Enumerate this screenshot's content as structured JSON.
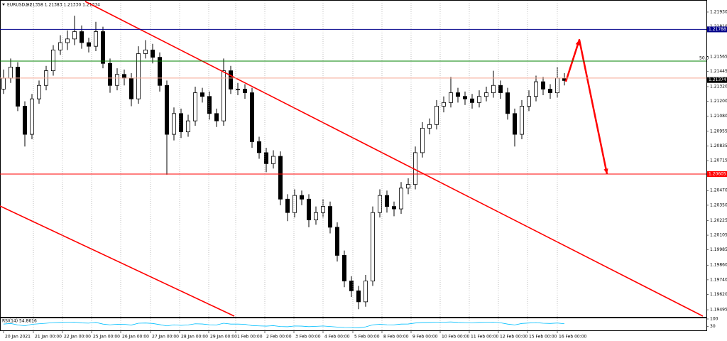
{
  "chart_data": {
    "type": "candlestick",
    "title": "EURUSD,H1",
    "quote": "1.21358 1.21383 1.21330 1.21374",
    "up_color": "#ffffff",
    "down_color": "#000000",
    "wick_color": "#000000",
    "grid": true,
    "xlim": [
      -0.5,
      99
    ],
    "xticks": [
      {
        "value": 0,
        "label": "20 Jan 2021"
      },
      {
        "value": 4.2,
        "label": "21 Jan 00:00"
      },
      {
        "value": 8.3,
        "label": "22 Jan 00:00"
      },
      {
        "value": 12.4,
        "label": "25 Jan 00:00"
      },
      {
        "value": 16.5,
        "label": "26 Jan 00:00"
      },
      {
        "value": 20.7,
        "label": "27 Jan 00:00"
      },
      {
        "value": 24.8,
        "label": "28 Jan 00:00"
      },
      {
        "value": 28.9,
        "label": "29 Jan 00:00"
      },
      {
        "value": 32.7,
        "label": "1 Feb 00:00"
      },
      {
        "value": 36.8,
        "label": "2 Feb 00:00"
      },
      {
        "value": 40.9,
        "label": "3 Feb 00:00"
      },
      {
        "value": 45,
        "label": "4 Feb 00:00"
      },
      {
        "value": 49.2,
        "label": "5 Feb 00:00"
      },
      {
        "value": 53.3,
        "label": "8 Feb 00:00"
      },
      {
        "value": 57.4,
        "label": "9 Feb 00:00"
      },
      {
        "value": 61.5,
        "label": "10 Feb 00:00"
      },
      {
        "value": 65.6,
        "label": "11 Feb 00:00"
      },
      {
        "value": 69.7,
        "label": "12 Feb 00:00"
      },
      {
        "value": 73.8,
        "label": "15 Feb 00:00"
      },
      {
        "value": 78,
        "label": "16 Feb 00:00"
      }
    ],
    "ylim": [
      1.19443,
      1.22017
    ],
    "yticks": [
      {
        "value": 1.2193,
        "label": "1.21930"
      },
      {
        "value": 1.2181,
        "label": "1.21810"
      },
      {
        "value": 1.21565,
        "label": "1.21565"
      },
      {
        "value": 1.21445,
        "label": "1.21445"
      },
      {
        "value": 1.2132,
        "label": "1.21320"
      },
      {
        "value": 1.212,
        "label": "1.21200"
      },
      {
        "value": 1.2108,
        "label": "1.21080"
      },
      {
        "value": 1.20955,
        "label": "1.20955"
      },
      {
        "value": 1.20835,
        "label": "1.20835"
      },
      {
        "value": 1.20715,
        "label": "1.20715"
      },
      {
        "value": 1.2047,
        "label": "1.20470"
      },
      {
        "value": 1.2035,
        "label": "1.20350"
      },
      {
        "value": 1.20225,
        "label": "1.20225"
      },
      {
        "value": 1.20105,
        "label": "1.20105"
      },
      {
        "value": 1.19985,
        "label": "1.19985"
      },
      {
        "value": 1.1986,
        "label": "1.19860"
      },
      {
        "value": 1.1974,
        "label": "1.19740"
      },
      {
        "value": 1.1962,
        "label": "1.19620"
      },
      {
        "value": 1.19495,
        "label": "1.19495"
      }
    ],
    "ohlc": [
      [
        1.213,
        1.2146,
        1.2126,
        1.2139
      ],
      [
        1.2139,
        1.2155,
        1.2135,
        1.2148
      ],
      [
        1.2148,
        1.2152,
        1.2112,
        1.2116
      ],
      [
        1.2116,
        1.212,
        1.2083,
        1.2093
      ],
      [
        1.2093,
        1.2126,
        1.2089,
        1.2122
      ],
      [
        1.2122,
        1.2137,
        1.2118,
        1.2133
      ],
      [
        1.2133,
        1.2149,
        1.2129,
        1.2145
      ],
      [
        1.2145,
        1.2166,
        1.2141,
        1.2162
      ],
      [
        1.2162,
        1.2174,
        1.2158,
        1.2168
      ],
      [
        1.2168,
        1.2178,
        1.2162,
        1.2171
      ],
      [
        1.2171,
        1.219,
        1.2166,
        1.2177
      ],
      [
        1.2177,
        1.2182,
        1.2163,
        1.2168
      ],
      [
        1.2168,
        1.2172,
        1.216,
        1.2165
      ],
      [
        1.2165,
        1.2185,
        1.2161,
        1.2177
      ],
      [
        1.2177,
        1.2181,
        1.2147,
        1.2151
      ],
      [
        1.2151,
        1.2155,
        1.2127,
        1.2133
      ],
      [
        1.2133,
        1.2147,
        1.2129,
        1.2142
      ],
      [
        1.2142,
        1.2146,
        1.2133,
        1.2139
      ],
      [
        1.2139,
        1.2143,
        1.2116,
        1.2122
      ],
      [
        1.2122,
        1.2165,
        1.2118,
        1.2159
      ],
      [
        1.2159,
        1.217,
        1.2155,
        1.2162
      ],
      [
        1.2162,
        1.2167,
        1.2151,
        1.2156
      ],
      [
        1.2156,
        1.216,
        1.2128,
        1.2133
      ],
      [
        1.2133,
        1.2137,
        1.206,
        1.2093
      ],
      [
        1.2093,
        1.2115,
        1.2088,
        1.211
      ],
      [
        1.211,
        1.2114,
        1.209,
        1.2095
      ],
      [
        1.2095,
        1.2109,
        1.2091,
        1.2104
      ],
      [
        1.2104,
        1.2132,
        1.21,
        1.2127
      ],
      [
        1.2127,
        1.2131,
        1.2119,
        1.2124
      ],
      [
        1.2124,
        1.2128,
        1.2105,
        1.211
      ],
      [
        1.211,
        1.2114,
        1.2099,
        1.2104
      ],
      [
        1.2104,
        1.2155,
        1.21,
        1.2145
      ],
      [
        1.2145,
        1.2149,
        1.2126,
        1.213
      ],
      [
        1.213,
        1.2135,
        1.2125,
        1.213
      ],
      [
        1.213,
        1.2134,
        1.2122,
        1.2127
      ],
      [
        1.2127,
        1.2131,
        1.2082,
        1.2087
      ],
      [
        1.2087,
        1.2091,
        1.2073,
        1.2078
      ],
      [
        1.2078,
        1.2082,
        1.2062,
        1.2069
      ],
      [
        1.2069,
        1.208,
        1.2065,
        1.2075
      ],
      [
        1.2075,
        1.2079,
        1.2035,
        1.204
      ],
      [
        1.204,
        1.2044,
        1.2022,
        1.2029
      ],
      [
        1.2029,
        1.2048,
        1.2025,
        1.2043
      ],
      [
        1.2043,
        1.2047,
        1.2035,
        1.204
      ],
      [
        1.204,
        1.2044,
        1.2017,
        1.2023
      ],
      [
        1.2023,
        1.2034,
        1.2019,
        1.2029
      ],
      [
        1.2029,
        1.204,
        1.2025,
        1.2034
      ],
      [
        1.2034,
        1.2038,
        1.2012,
        1.2017
      ],
      [
        1.2017,
        1.2021,
        1.1989,
        1.1994
      ],
      [
        1.1994,
        1.1998,
        1.1968,
        1.1973
      ],
      [
        1.1973,
        1.1977,
        1.196,
        1.1965
      ],
      [
        1.1965,
        1.1969,
        1.195,
        1.1956
      ],
      [
        1.1956,
        1.1978,
        1.1952,
        1.1973
      ],
      [
        1.1973,
        1.2034,
        1.1969,
        1.2029
      ],
      [
        1.2029,
        1.2048,
        1.2025,
        1.2043
      ],
      [
        1.2043,
        1.2047,
        1.2029,
        1.2034
      ],
      [
        1.2034,
        1.2038,
        1.2026,
        1.2032
      ],
      [
        1.2032,
        1.2054,
        1.2028,
        1.2049
      ],
      [
        1.2049,
        1.2057,
        1.2044,
        1.2052
      ],
      [
        1.2052,
        1.2083,
        1.2048,
        1.2078
      ],
      [
        1.2078,
        1.2103,
        1.2074,
        1.2098
      ],
      [
        1.2098,
        1.2106,
        1.2093,
        1.2101
      ],
      [
        1.2101,
        1.2121,
        1.2097,
        1.2116
      ],
      [
        1.2116,
        1.2124,
        1.2111,
        1.2119
      ],
      [
        1.2119,
        1.214,
        1.2115,
        1.2127
      ],
      [
        1.2127,
        1.2131,
        1.2119,
        1.2124
      ],
      [
        1.2124,
        1.2128,
        1.2117,
        1.2122
      ],
      [
        1.2122,
        1.2126,
        1.2114,
        1.2119
      ],
      [
        1.2119,
        1.2129,
        1.2115,
        1.2124
      ],
      [
        1.2124,
        1.2132,
        1.212,
        1.2127
      ],
      [
        1.2127,
        1.2145,
        1.2123,
        1.2133
      ],
      [
        1.2133,
        1.2137,
        1.2122,
        1.2127
      ],
      [
        1.2127,
        1.2131,
        1.2105,
        1.211
      ],
      [
        1.211,
        1.2114,
        1.2083,
        1.2093
      ],
      [
        1.2093,
        1.2121,
        1.2089,
        1.2116
      ],
      [
        1.2116,
        1.2129,
        1.2112,
        1.2124
      ],
      [
        1.2124,
        1.2141,
        1.212,
        1.2136
      ],
      [
        1.2136,
        1.214,
        1.2125,
        1.213
      ],
      [
        1.213,
        1.2134,
        1.2122,
        1.2127
      ],
      [
        1.2127,
        1.2148,
        1.2123,
        1.2139
      ],
      [
        1.2139,
        1.2143,
        1.2133,
        1.2137
      ]
    ],
    "levels": [
      {
        "price": 1.21788,
        "color": "#00008b",
        "tag": true
      },
      {
        "price": 1.21529,
        "color": "#008000",
        "text": "50.0"
      },
      {
        "price": 1.2139,
        "color": "#f4a38f"
      },
      {
        "price": 1.20605,
        "color": "#ff0000",
        "tag": true
      }
    ],
    "bid": {
      "price": 1.21374,
      "color": "#000000"
    },
    "trendlines": [
      {
        "color": "#ff0000",
        "x": [
          11.5,
          98.5
        ],
        "y": [
          1.22017,
          1.19443
        ]
      },
      {
        "color": "#ff0000",
        "x": [
          -0.5,
          32.5
        ],
        "y": [
          1.20344,
          1.19443
        ]
      }
    ],
    "arrow": {
      "color": "#ff0000",
      "x": [
        79.2,
        81.1,
        85
      ],
      "y": [
        1.21361,
        1.21703,
        1.20605
      ]
    },
    "rsi": {
      "label": "RSI(14) 54.8616",
      "color": "#00bfff",
      "ylim": [
        0,
        100
      ],
      "yticks": [
        100,
        30
      ],
      "values": [
        52,
        58,
        44,
        36,
        50,
        55,
        60,
        66,
        68,
        69,
        71,
        63,
        61,
        68,
        52,
        45,
        51,
        50,
        43,
        60,
        62,
        58,
        47,
        35,
        45,
        40,
        44,
        55,
        53,
        46,
        44,
        60,
        52,
        52,
        50,
        38,
        35,
        33,
        37,
        29,
        27,
        34,
        33,
        28,
        31,
        34,
        29,
        24,
        20,
        19,
        17,
        26,
        45,
        50,
        46,
        45,
        52,
        53,
        62,
        67,
        68,
        70,
        70,
        72,
        68,
        66,
        64,
        68,
        69,
        71,
        64,
        52,
        44,
        58,
        62,
        66,
        60,
        58,
        62,
        55
      ]
    }
  }
}
